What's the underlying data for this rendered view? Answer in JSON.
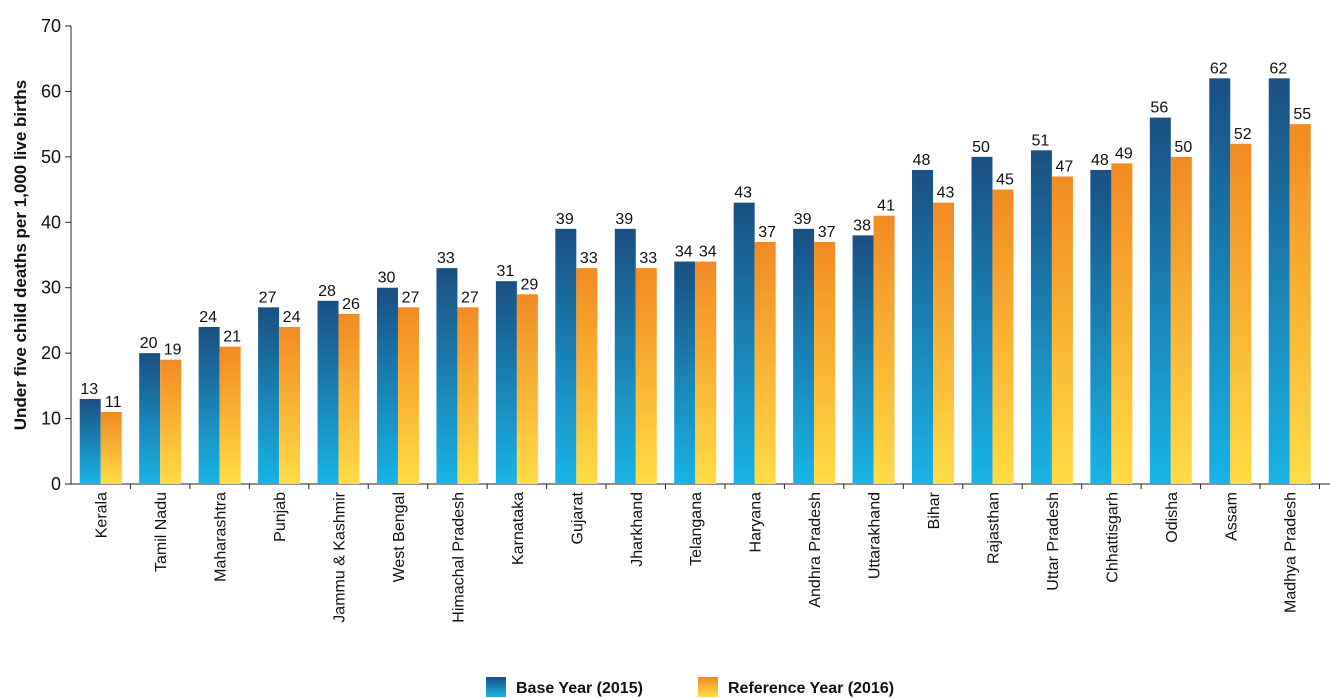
{
  "chart_data": {
    "type": "bar",
    "ylabel": "Under five child deaths per 1,000 live births",
    "ylim": [
      0,
      70
    ],
    "yticks": [
      0,
      10,
      20,
      30,
      40,
      50,
      60,
      70
    ],
    "grid": false,
    "legend_position": "bottom-center",
    "categories": [
      "Kerala",
      "Tamil Nadu",
      "Maharashtra",
      "Punjab",
      "Jammu & Kashmir",
      "West Bengal",
      "Himachal Pradesh",
      "Karnataka",
      "Gujarat",
      "Jharkhand",
      "Telangana",
      "Haryana",
      "Andhra Pradesh",
      "Uttarakhand",
      "Bihar",
      "Rajasthan",
      "Uttar Pradesh",
      "Chhattisgarh",
      "Odisha",
      "Assam",
      "Madhya Pradesh"
    ],
    "series": [
      {
        "name": "Base Year (2015)",
        "color_top": "#1b4f82",
        "color_bottom": "#19b4e6",
        "values": [
          13,
          20,
          24,
          27,
          28,
          30,
          33,
          31,
          39,
          39,
          34,
          43,
          39,
          38,
          48,
          50,
          51,
          48,
          56,
          62,
          62
        ]
      },
      {
        "name": "Reference Year (2016)",
        "color_top": "#f28a22",
        "color_bottom": "#ffdc45",
        "values": [
          11,
          19,
          21,
          24,
          26,
          27,
          27,
          29,
          33,
          33,
          34,
          37,
          37,
          41,
          43,
          45,
          47,
          49,
          50,
          52,
          55
        ]
      }
    ]
  }
}
